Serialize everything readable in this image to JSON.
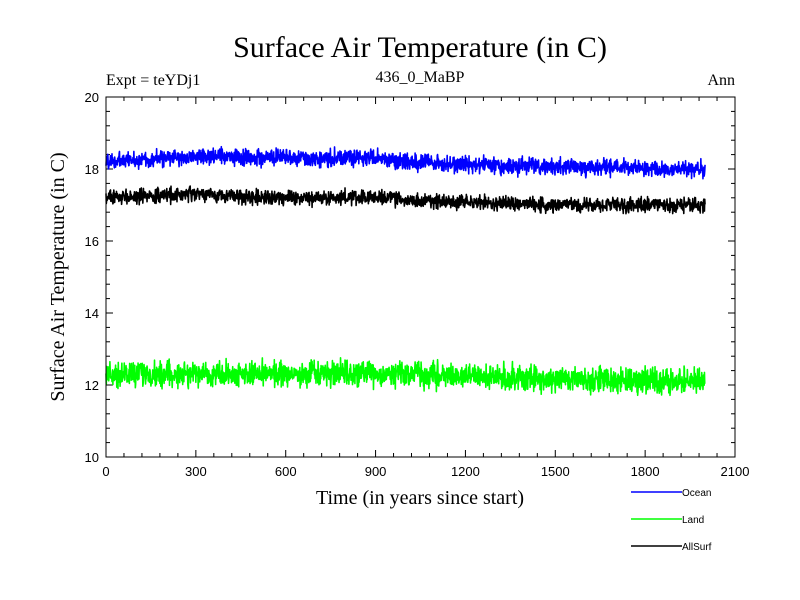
{
  "chart_data": {
    "type": "line",
    "title": "Surface Air Temperature (in C)",
    "subtitle_left": "Expt = teYDj1",
    "subtitle_center": "436_0_MaBP",
    "subtitle_right": "Ann",
    "xlabel": "Time (in years since start)",
    "ylabel": "Surface Air Temperature (in C)",
    "xlim": [
      0,
      2100
    ],
    "ylim": [
      10,
      20
    ],
    "x_ticks": [
      0,
      300,
      600,
      900,
      1200,
      1500,
      1800,
      2100
    ],
    "y_ticks": [
      10,
      12,
      14,
      16,
      18,
      20
    ],
    "x_tick_labels": [
      "0",
      "300",
      "600",
      "900",
      "1200",
      "1500",
      "1800",
      "2100"
    ],
    "y_tick_labels": [
      "10",
      "12",
      "14",
      "16",
      "18",
      "20"
    ],
    "x_start": 0,
    "x_end": 2000,
    "legend_position": "bottom-right",
    "series": [
      {
        "name": "Ocean",
        "color": "#0000ff",
        "mean": 18.25,
        "noise": 0.16,
        "anchors": [
          [
            0,
            18.2
          ],
          [
            300,
            18.35
          ],
          [
            600,
            18.3
          ],
          [
            900,
            18.3
          ],
          [
            1100,
            18.15
          ],
          [
            1500,
            18.05
          ],
          [
            2000,
            18.0
          ]
        ]
      },
      {
        "name": "Land",
        "color": "#00ff00",
        "mean": 12.25,
        "noise": 0.24,
        "anchors": [
          [
            0,
            12.3
          ],
          [
            600,
            12.3
          ],
          [
            1000,
            12.3
          ],
          [
            1500,
            12.15
          ],
          [
            2000,
            12.1
          ]
        ]
      },
      {
        "name": "AllSurf",
        "color": "#000000",
        "mean": 17.2,
        "noise": 0.14,
        "anchors": [
          [
            0,
            17.2
          ],
          [
            300,
            17.3
          ],
          [
            600,
            17.2
          ],
          [
            900,
            17.2
          ],
          [
            1100,
            17.1
          ],
          [
            1500,
            17.0
          ],
          [
            2000,
            17.0
          ]
        ]
      }
    ]
  }
}
